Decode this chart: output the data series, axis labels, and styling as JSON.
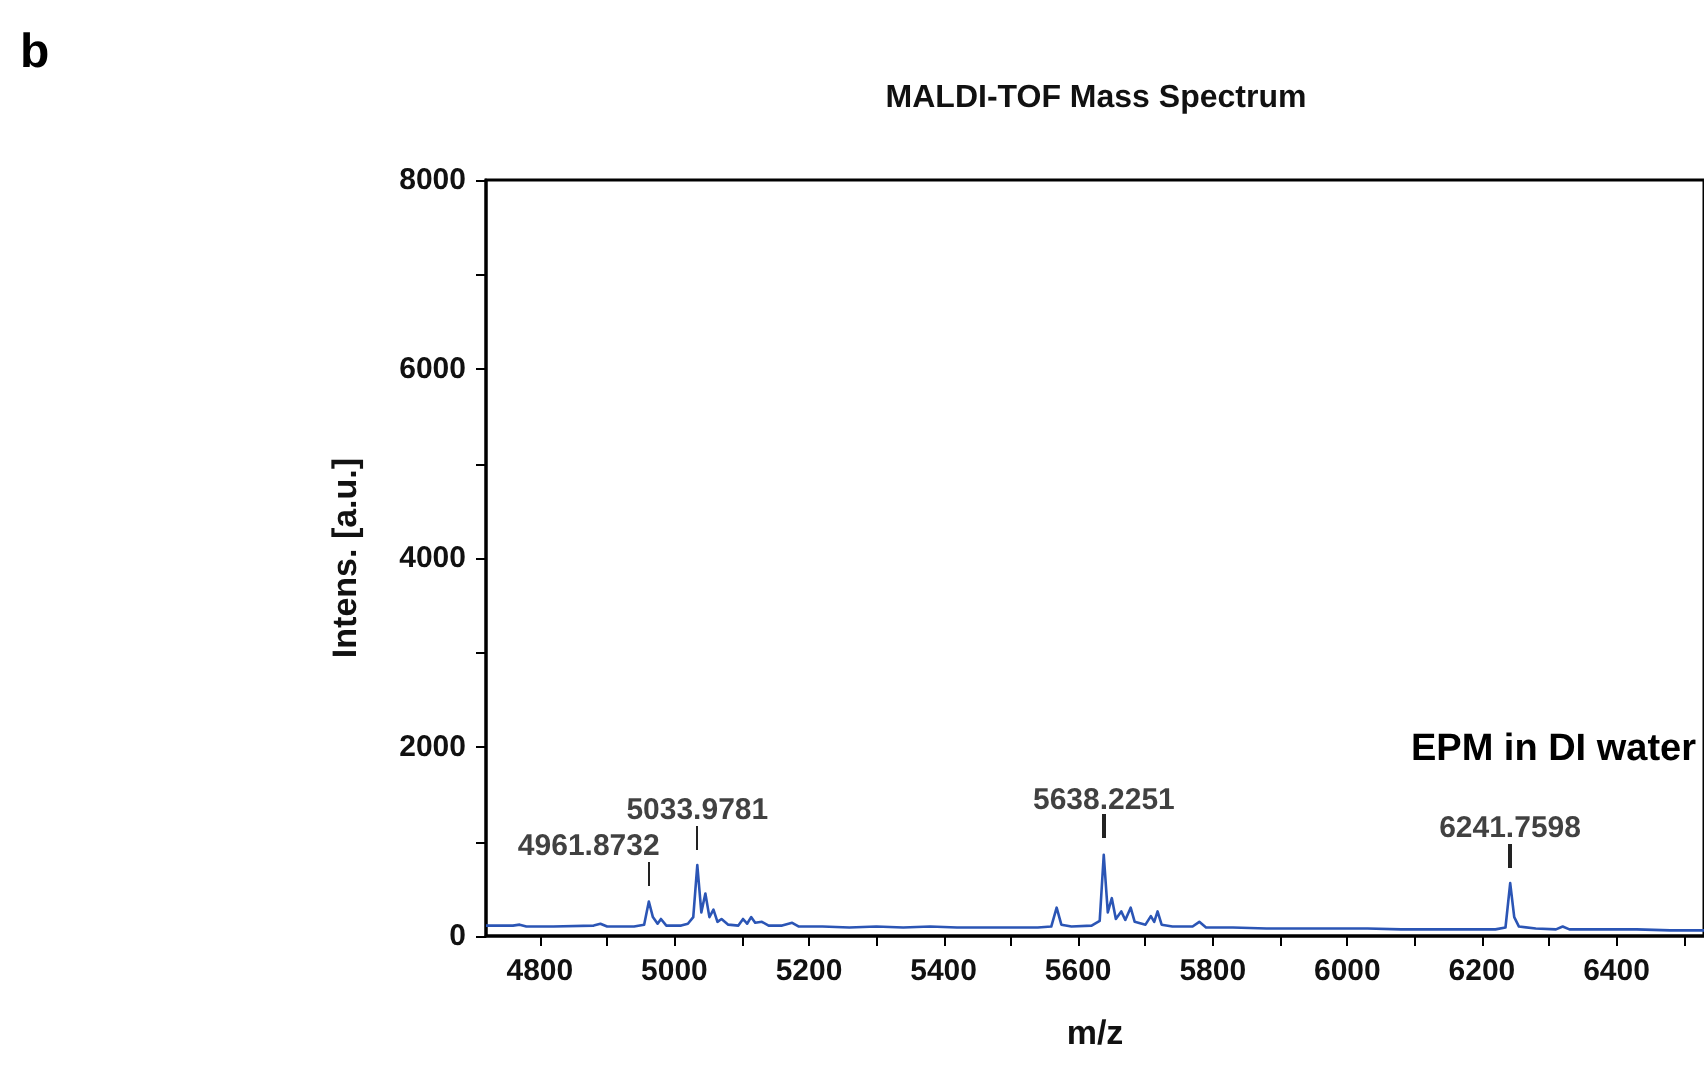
{
  "chart_data": {
    "type": "line",
    "title": "MALDI-TOF Mass Spectrum",
    "xlabel": "m/z",
    "ylabel": "Intens. [a.u.]",
    "annotations": [
      "b",
      "EPM in DI water",
      {
        "text": "4961.8732",
        "x": 4961.8732,
        "y": 365
      },
      {
        "text": "5033.9781",
        "x": 5033.9781,
        "y": 750
      },
      {
        "text": "5638.2251",
        "x": 5638.2251,
        "y": 860
      },
      {
        "text": "6241.7598",
        "x": 6241.7598,
        "y": 560
      }
    ],
    "series": [
      {
        "color": "#2b55b5",
        "x": [
          4720,
          4760,
          4770,
          4780,
          4820,
          4880,
          4890,
          4900,
          4940,
          4955,
          4962,
          4968,
          4975,
          4980,
          4988,
          5010,
          5020,
          5028,
          5034,
          5040,
          5046,
          5052,
          5058,
          5064,
          5070,
          5080,
          5095,
          5102,
          5108,
          5114,
          5120,
          5130,
          5140,
          5160,
          5175,
          5185,
          5220,
          5260,
          5300,
          5340,
          5380,
          5420,
          5460,
          5500,
          5540,
          5560,
          5568,
          5575,
          5590,
          5620,
          5632,
          5638,
          5644,
          5650,
          5656,
          5664,
          5670,
          5678,
          5684,
          5700,
          5708,
          5713,
          5718,
          5724,
          5740,
          5770,
          5780,
          5790,
          5830,
          5880,
          5930,
          5980,
          6030,
          6080,
          6130,
          6180,
          6220,
          6235,
          6242,
          6248,
          6255,
          6280,
          6310,
          6320,
          6330,
          6380,
          6430,
          6480,
          6530
        ],
        "values": [
          110,
          110,
          120,
          100,
          100,
          110,
          130,
          100,
          100,
          120,
          365,
          200,
          130,
          180,
          110,
          110,
          130,
          200,
          750,
          250,
          450,
          200,
          280,
          150,
          180,
          120,
          110,
          180,
          130,
          200,
          140,
          150,
          110,
          110,
          140,
          100,
          100,
          90,
          100,
          90,
          100,
          90,
          90,
          90,
          90,
          100,
          300,
          120,
          100,
          110,
          160,
          860,
          250,
          400,
          180,
          260,
          170,
          300,
          150,
          120,
          210,
          150,
          260,
          120,
          100,
          100,
          150,
          90,
          90,
          80,
          80,
          80,
          80,
          70,
          70,
          70,
          70,
          90,
          560,
          200,
          100,
          80,
          70,
          100,
          70,
          70,
          70,
          60,
          60
        ]
      }
    ],
    "xlim": [
      4720,
      6530
    ],
    "xticks": [
      4800,
      {
        "value": 4900,
        "label": null
      },
      5000,
      {
        "value": 5100,
        "label": null
      },
      5200,
      {
        "value": 5300,
        "label": null
      },
      5400,
      {
        "value": 5500,
        "label": null
      },
      5600,
      {
        "value": 5700,
        "label": null
      },
      5800,
      {
        "value": 5900,
        "label": null
      },
      6000,
      {
        "value": 6100,
        "label": null
      },
      6200,
      {
        "value": 6300,
        "label": null
      },
      6400,
      {
        "value": 6500,
        "label": null
      }
    ],
    "ylim": [
      0,
      8000
    ],
    "yticks": [
      0,
      {
        "value": 1000,
        "label": null
      },
      2000,
      {
        "value": 3000,
        "label": null
      },
      4000,
      {
        "value": 5000,
        "label": null
      },
      6000,
      {
        "value": 7000,
        "label": null
      },
      8000
    ],
    "grid": false,
    "marker": "none",
    "line_style": "solid"
  }
}
